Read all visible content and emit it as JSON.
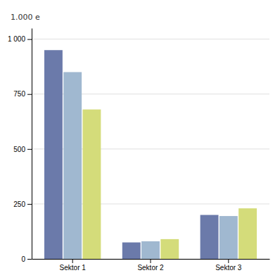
{
  "chart_data": {
    "type": "bar",
    "ylabel": "1.000 e",
    "categories": [
      "Sektor 1",
      "Sektor 2",
      "Sektor 3"
    ],
    "series": [
      {
        "color": "#6b7aaa",
        "values": [
          950,
          75,
          200
        ]
      },
      {
        "color": "#a0b8d0",
        "values": [
          850,
          80,
          195
        ]
      },
      {
        "color": "#d4dc7a",
        "values": [
          680,
          90,
          230
        ]
      }
    ],
    "ylim": [
      0,
      1050
    ],
    "yticks": [
      0,
      250,
      500,
      750,
      {
        "value": 1000,
        "label": "1 000"
      }
    ],
    "grid": true
  }
}
